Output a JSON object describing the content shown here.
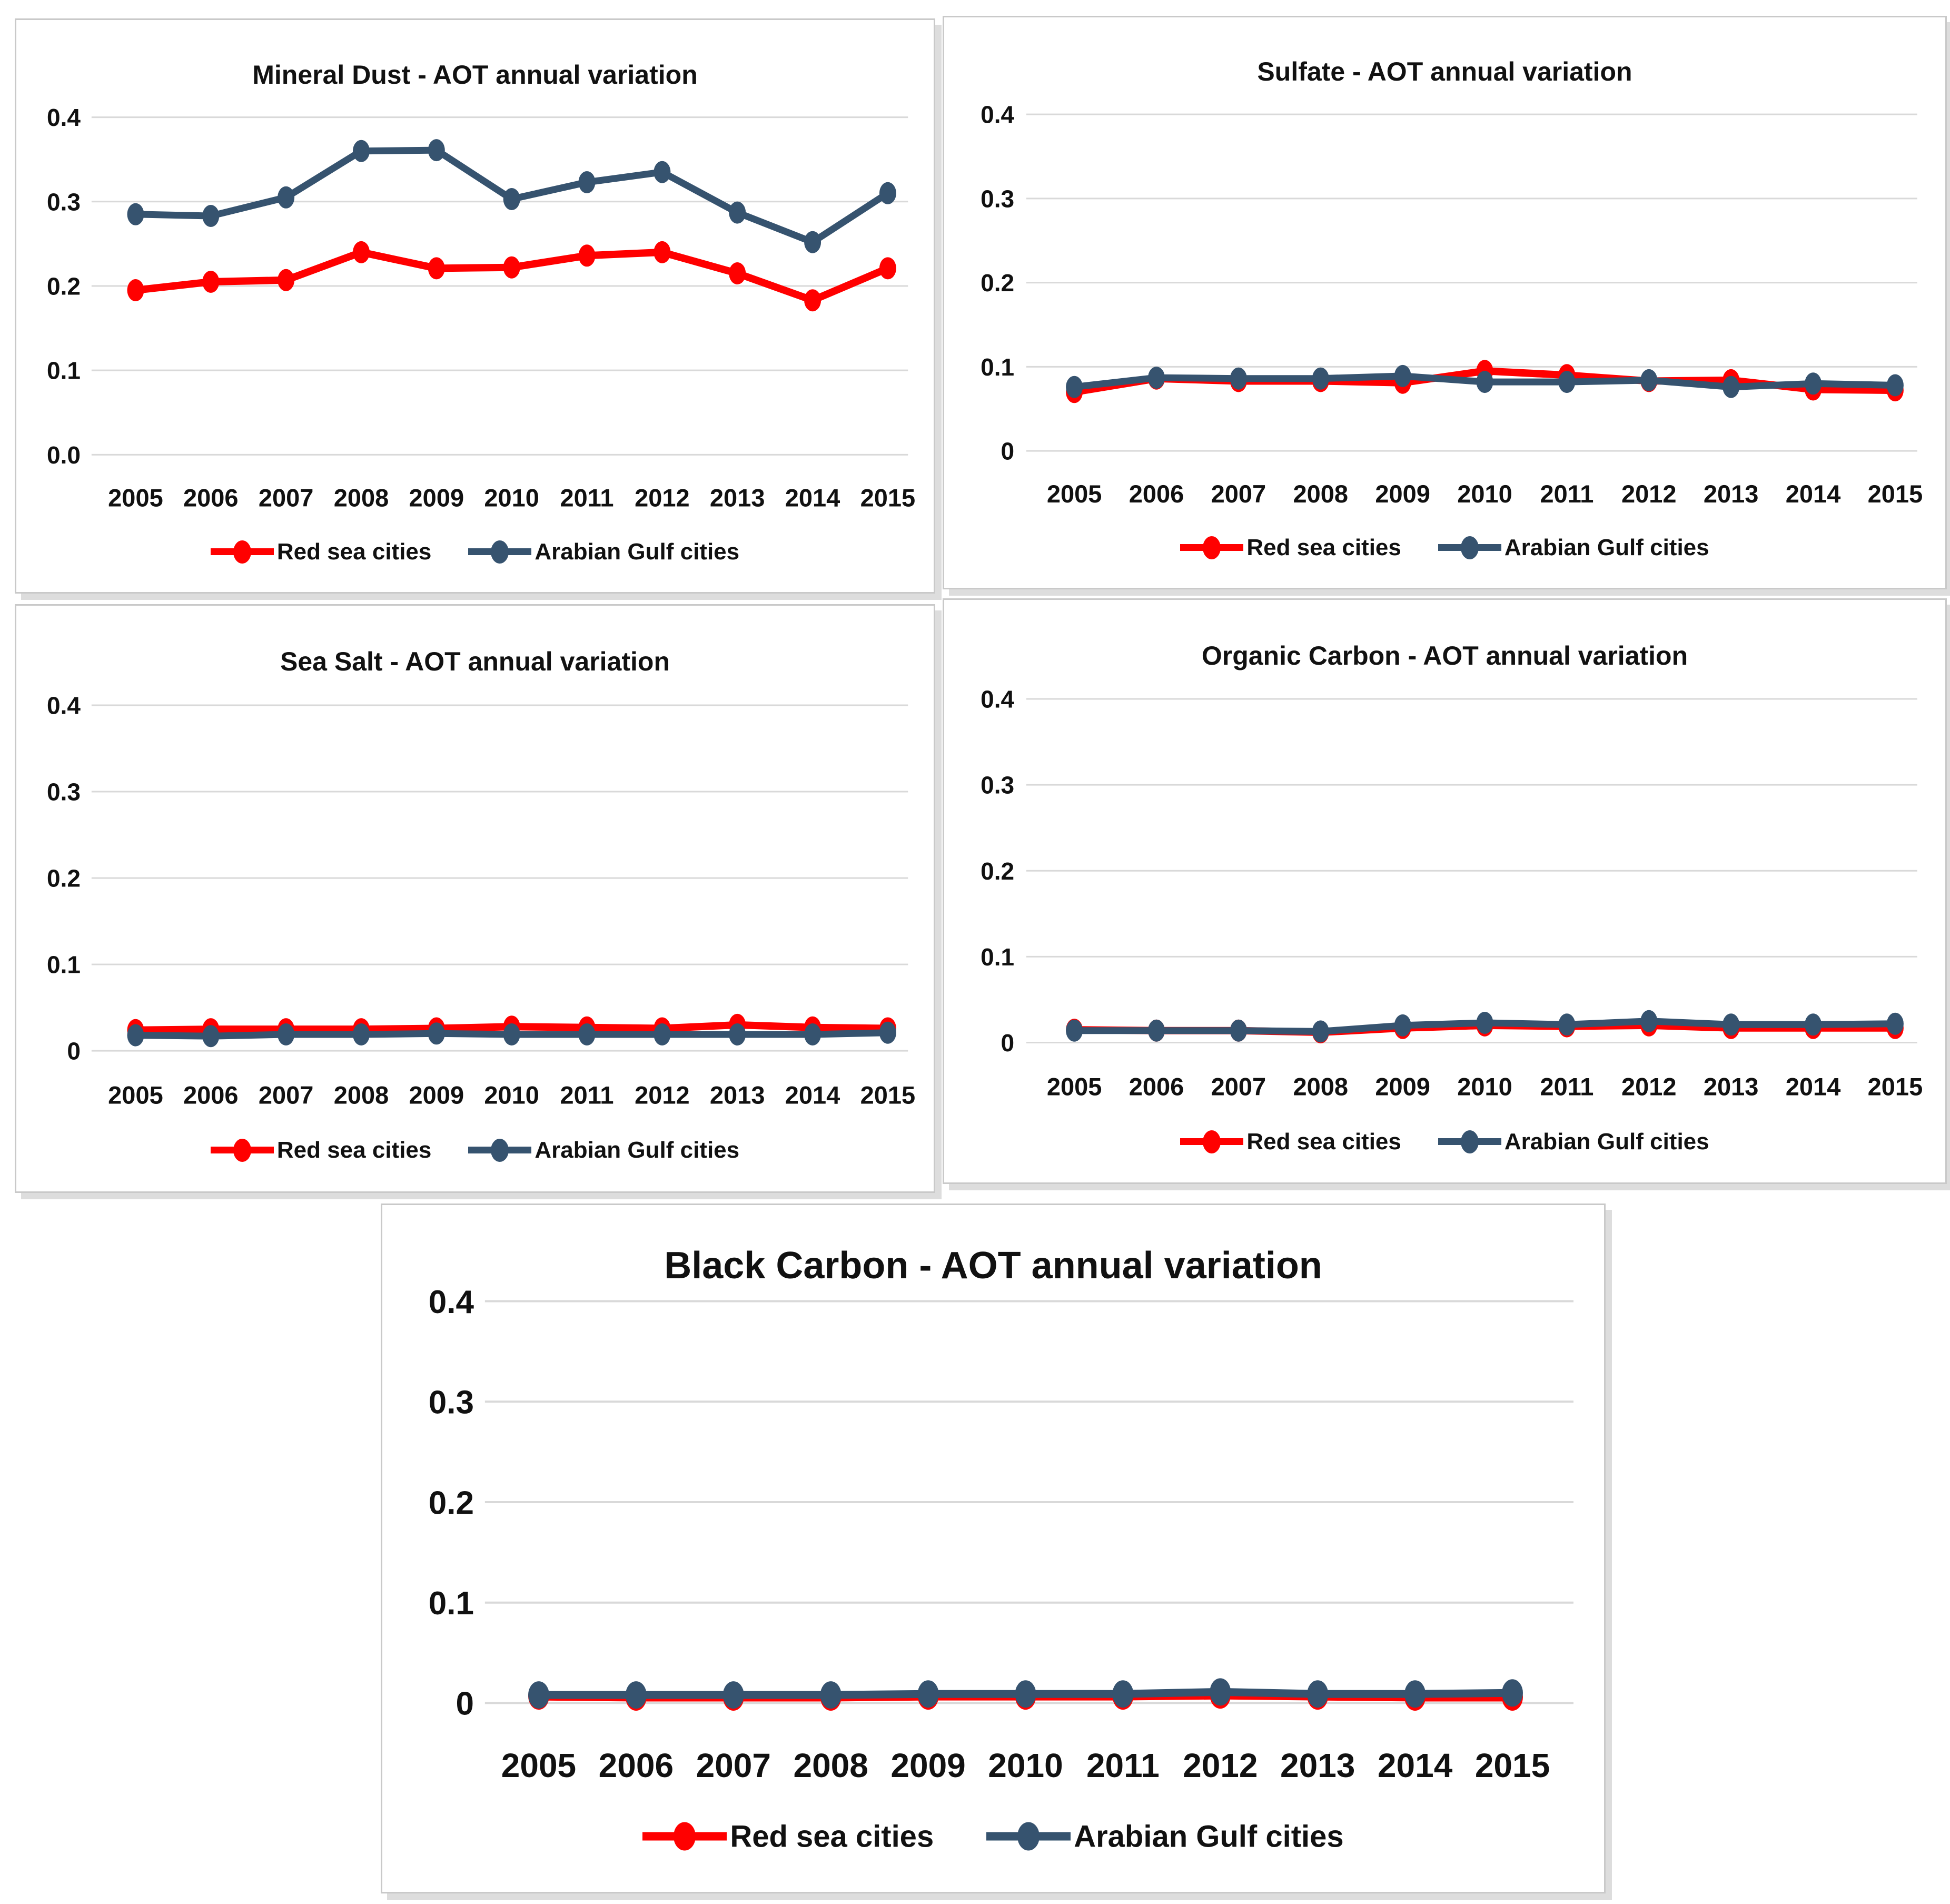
{
  "colors": {
    "red_series": "#FF0000",
    "gulf_series": "#36536F",
    "gridline": "#D9D9D9",
    "panel_border": "#C9C9C9",
    "panel_shadow": "#DDDDDD",
    "text": "#111111"
  },
  "chart_data": [
    {
      "type": "line",
      "title": "Mineral Dust - AOT annual variation",
      "categories": [
        "2005",
        "2006",
        "2007",
        "2008",
        "2009",
        "2010",
        "2011",
        "2012",
        "2013",
        "2014",
        "2015"
      ],
      "y_ticks": [
        "0.4",
        "0.3",
        "0.2",
        "0.1",
        "0.0"
      ],
      "ylim": [
        0,
        0.4
      ],
      "grid": true,
      "legend_position": "bottom",
      "series": [
        {
          "name": "Red sea cities",
          "color": "#FF0000",
          "values": [
            0.195,
            0.205,
            0.207,
            0.24,
            0.221,
            0.222,
            0.236,
            0.24,
            0.215,
            0.183,
            0.221
          ]
        },
        {
          "name": "Arabian Gulf cities",
          "color": "#36536F",
          "values": [
            0.285,
            0.283,
            0.305,
            0.36,
            0.361,
            0.303,
            0.323,
            0.335,
            0.287,
            0.252,
            0.31
          ]
        }
      ]
    },
    {
      "type": "line",
      "title": "Sulfate - AOT annual variation",
      "categories": [
        "2005",
        "2006",
        "2007",
        "2008",
        "2009",
        "2010",
        "2011",
        "2012",
        "2013",
        "2014",
        "2015"
      ],
      "y_ticks": [
        "0.4",
        "0.3",
        "0.2",
        "0.1",
        "0"
      ],
      "ylim": [
        0,
        0.4
      ],
      "grid": true,
      "legend_position": "bottom",
      "series": [
        {
          "name": "Red sea cities",
          "color": "#FF0000",
          "values": [
            0.07,
            0.086,
            0.083,
            0.083,
            0.081,
            0.095,
            0.09,
            0.083,
            0.084,
            0.073,
            0.072
          ]
        },
        {
          "name": "Arabian Gulf cities",
          "color": "#36536F",
          "values": [
            0.076,
            0.087,
            0.086,
            0.086,
            0.089,
            0.082,
            0.082,
            0.084,
            0.076,
            0.08,
            0.078
          ]
        }
      ]
    },
    {
      "type": "line",
      "title": "Sea Salt - AOT annual variation",
      "categories": [
        "2005",
        "2006",
        "2007",
        "2008",
        "2009",
        "2010",
        "2011",
        "2012",
        "2013",
        "2014",
        "2015"
      ],
      "y_ticks": [
        "0.4",
        "0.3",
        "0.2",
        "0.1",
        "0"
      ],
      "ylim": [
        0,
        0.4
      ],
      "grid": true,
      "legend_position": "bottom",
      "series": [
        {
          "name": "Red sea cities",
          "color": "#FF0000",
          "values": [
            0.024,
            0.025,
            0.025,
            0.025,
            0.026,
            0.028,
            0.027,
            0.026,
            0.03,
            0.027,
            0.026
          ]
        },
        {
          "name": "Arabian Gulf cities",
          "color": "#36536F",
          "values": [
            0.018,
            0.017,
            0.019,
            0.019,
            0.02,
            0.019,
            0.019,
            0.019,
            0.019,
            0.019,
            0.021
          ]
        }
      ]
    },
    {
      "type": "line",
      "title": "Organic Carbon - AOT annual variation",
      "categories": [
        "2005",
        "2006",
        "2007",
        "2008",
        "2009",
        "2010",
        "2011",
        "2012",
        "2013",
        "2014",
        "2015"
      ],
      "y_ticks": [
        "0.4",
        "0.3",
        "0.2",
        "0.1",
        "0"
      ],
      "ylim": [
        0,
        0.4
      ],
      "grid": true,
      "legend_position": "bottom",
      "series": [
        {
          "name": "Red sea cities",
          "color": "#FF0000",
          "values": [
            0.015,
            0.014,
            0.014,
            0.012,
            0.017,
            0.02,
            0.019,
            0.02,
            0.017,
            0.017,
            0.017
          ]
        },
        {
          "name": "Arabian Gulf cities",
          "color": "#36536F",
          "values": [
            0.014,
            0.014,
            0.014,
            0.013,
            0.02,
            0.023,
            0.021,
            0.025,
            0.021,
            0.021,
            0.022
          ]
        }
      ]
    },
    {
      "type": "line",
      "title": "Black Carbon - AOT annual variation",
      "categories": [
        "2005",
        "2006",
        "2007",
        "2008",
        "2009",
        "2010",
        "2011",
        "2012",
        "2013",
        "2014",
        "2015"
      ],
      "y_ticks": [
        "0.4",
        "0.3",
        "0.2",
        "0.1",
        "0"
      ],
      "ylim": [
        0,
        0.4
      ],
      "grid": true,
      "legend_position": "bottom",
      "series": [
        {
          "name": "Red sea cities",
          "color": "#FF0000",
          "values": [
            0.007,
            0.006,
            0.006,
            0.006,
            0.007,
            0.007,
            0.007,
            0.008,
            0.007,
            0.006,
            0.006
          ]
        },
        {
          "name": "Arabian Gulf cities",
          "color": "#36536F",
          "values": [
            0.008,
            0.008,
            0.008,
            0.008,
            0.009,
            0.009,
            0.009,
            0.011,
            0.009,
            0.009,
            0.01
          ]
        }
      ]
    }
  ]
}
